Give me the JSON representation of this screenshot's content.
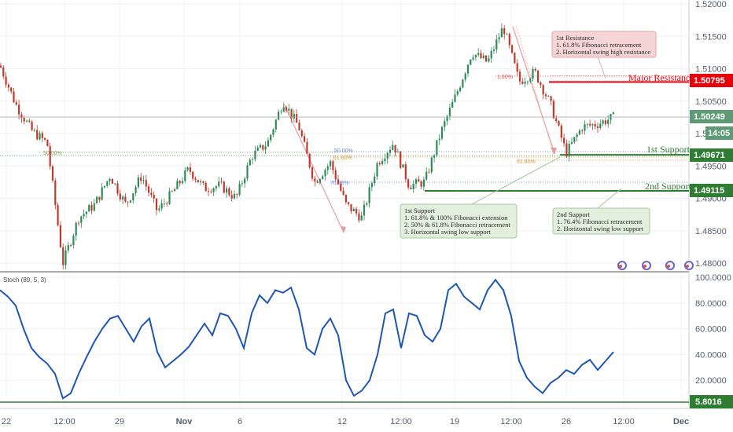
{
  "chart_data": [
    {
      "type": "candlestick",
      "symbol": "",
      "title": "",
      "y_ticks": [
        "1.52000",
        "1.51500",
        "1.51000",
        "1.50500",
        "1.50000",
        "1.49500",
        "1.49000",
        "1.48500",
        "1.48000"
      ],
      "ylim": [
        1.4775,
        1.52
      ],
      "x_ticks": [
        "22",
        "12:00",
        "29",
        "Nov",
        "6",
        "12",
        "12:00",
        "19",
        "12:00",
        "26",
        "12:00",
        "Dec"
      ],
      "current_price": "1.50249",
      "countdown": "14:05",
      "levels": [
        {
          "name": "Major Resistance",
          "value": "1.50795",
          "color": "#e8000b",
          "text_color": "#e8000b"
        },
        {
          "name": "1st Support",
          "value": "1.49671",
          "color": "#2e7d32",
          "text_color": "#2e7d32"
        },
        {
          "name": "2nd Support",
          "value": "1.49115",
          "color": "#2e7d32",
          "text_color": "#2e7d32"
        }
      ],
      "fib_labels": [
        "50.00%",
        "1.80%",
        "61.80%",
        "76.40%",
        "50.00%",
        "61.80%"
      ],
      "annotations": [
        {
          "id": "res",
          "lines": [
            "1st Resistance",
            "1. 61.8% Fibonacci retracement",
            "2. Horizontal swing high resistance"
          ]
        },
        {
          "id": "sup1",
          "lines": [
            "1st Support",
            "1. 61.8% & 100% Fibonacci extension",
            "2. 50% & 61.8% Fibonacci retracement",
            "3. Horizontal swing low support"
          ]
        },
        {
          "id": "sup2",
          "lines": [
            "2nd Support",
            "1. 76.4% Fibonacci retracement",
            "2. Horizontal swing low support"
          ]
        }
      ],
      "series": [
        {
          "x": [
            0,
            20,
            40,
            60,
            80,
            100,
            120,
            140,
            160,
            180,
            200,
            220,
            240,
            260,
            280,
            300,
            320,
            340,
            360,
            380,
            400,
            420,
            440,
            460,
            480,
            500,
            520,
            540,
            560,
            580,
            600,
            620,
            640,
            660,
            680,
            700,
            720,
            740,
            760,
            780
          ],
          "values": [
            1.5105,
            1.5045,
            1.5005,
            1.4985,
            1.48,
            1.487,
            1.489,
            1.4935,
            1.489,
            1.4935,
            1.488,
            1.491,
            1.4945,
            1.4915,
            1.492,
            1.49,
            1.4965,
            1.4985,
            1.505,
            1.501,
            1.4925,
            1.4955,
            1.489,
            1.487,
            1.4955,
            1.4985,
            1.492,
            1.4925,
            1.5,
            1.506,
            1.5125,
            1.511,
            1.5165,
            1.508,
            1.5095,
            1.5045,
            1.497,
            1.501,
            1.5015,
            1.5025
          ]
        }
      ]
    },
    {
      "type": "line",
      "title": "Stoch (89, 5, 3)",
      "y_ticks": [
        "100.0000",
        "80.0000",
        "60.0000",
        "40.0000",
        "20.0000"
      ],
      "ylim": [
        0,
        100
      ],
      "level_tag": "5.8016",
      "series": [
        {
          "x": [
            0,
            10,
            20,
            30,
            40,
            50,
            60,
            70,
            80,
            90,
            100,
            110,
            120,
            130,
            140,
            150,
            160,
            170,
            180,
            190,
            200,
            210,
            220,
            230,
            240,
            250,
            260,
            270,
            280,
            290,
            300,
            310,
            320,
            330,
            340,
            350,
            360,
            370,
            380,
            390,
            400,
            410,
            420,
            430,
            440,
            450,
            460,
            470,
            480,
            490,
            500,
            510,
            520,
            530,
            540,
            550,
            560,
            570,
            580,
            590,
            600,
            610,
            620,
            630,
            640,
            650,
            660,
            670,
            680,
            690,
            700,
            710,
            720,
            730,
            740,
            750,
            760,
            770,
            780
          ],
          "values": [
            90,
            85,
            78,
            60,
            45,
            38,
            33,
            25,
            6,
            10,
            25,
            38,
            50,
            60,
            68,
            70,
            60,
            50,
            62,
            68,
            42,
            30,
            35,
            40,
            46,
            55,
            64,
            55,
            72,
            70,
            60,
            45,
            72,
            86,
            80,
            90,
            88,
            92,
            75,
            45,
            40,
            60,
            68,
            55,
            20,
            8,
            12,
            20,
            40,
            72,
            75,
            45,
            72,
            70,
            55,
            50,
            60,
            90,
            95,
            85,
            80,
            75,
            90,
            98,
            90,
            70,
            35,
            22,
            15,
            10,
            18,
            22,
            28,
            25,
            32,
            36,
            28,
            35,
            42
          ]
        }
      ]
    }
  ]
}
